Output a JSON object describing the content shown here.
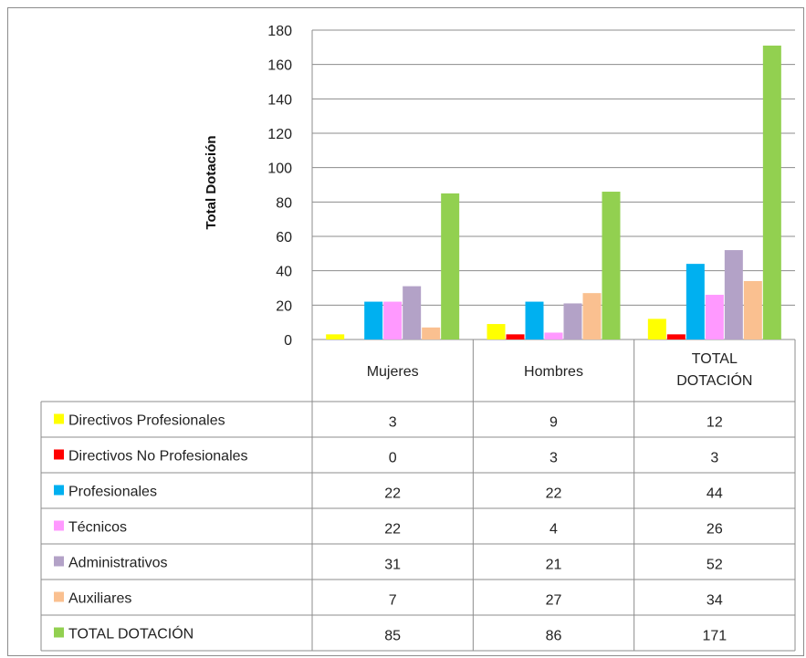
{
  "chart_data": {
    "type": "bar",
    "ylabel": "Total Dotación",
    "ylim": [
      0,
      180
    ],
    "yticks": [
      0,
      20,
      40,
      60,
      80,
      100,
      120,
      140,
      160,
      180
    ],
    "grid": true,
    "categories": [
      "Mujeres",
      "Hombres",
      "TOTAL DOTACIÓN"
    ],
    "category_display_lines": [
      [
        "Mujeres"
      ],
      [
        "Hombres"
      ],
      [
        "TOTAL",
        "DOTACIÓN"
      ]
    ],
    "series": [
      {
        "name": "Directivos Profesionales",
        "color": "#ffff00",
        "values": [
          3,
          9,
          12
        ]
      },
      {
        "name": "Directivos No Profesionales",
        "color": "#ff0000",
        "values": [
          0,
          3,
          3
        ]
      },
      {
        "name": "Profesionales",
        "color": "#00b0f0",
        "values": [
          22,
          22,
          44
        ]
      },
      {
        "name": "Técnicos",
        "color": "#ff99ff",
        "values": [
          22,
          4,
          26
        ]
      },
      {
        "name": "Administrativos",
        "color": "#b3a2c7",
        "values": [
          31,
          21,
          52
        ]
      },
      {
        "name": "Auxiliares",
        "color": "#fac090",
        "values": [
          7,
          27,
          34
        ]
      },
      {
        "name": "TOTAL DOTACIÓN",
        "color": "#92d050",
        "values": [
          85,
          86,
          171
        ]
      }
    ],
    "legend_placement": "data-table-left"
  }
}
